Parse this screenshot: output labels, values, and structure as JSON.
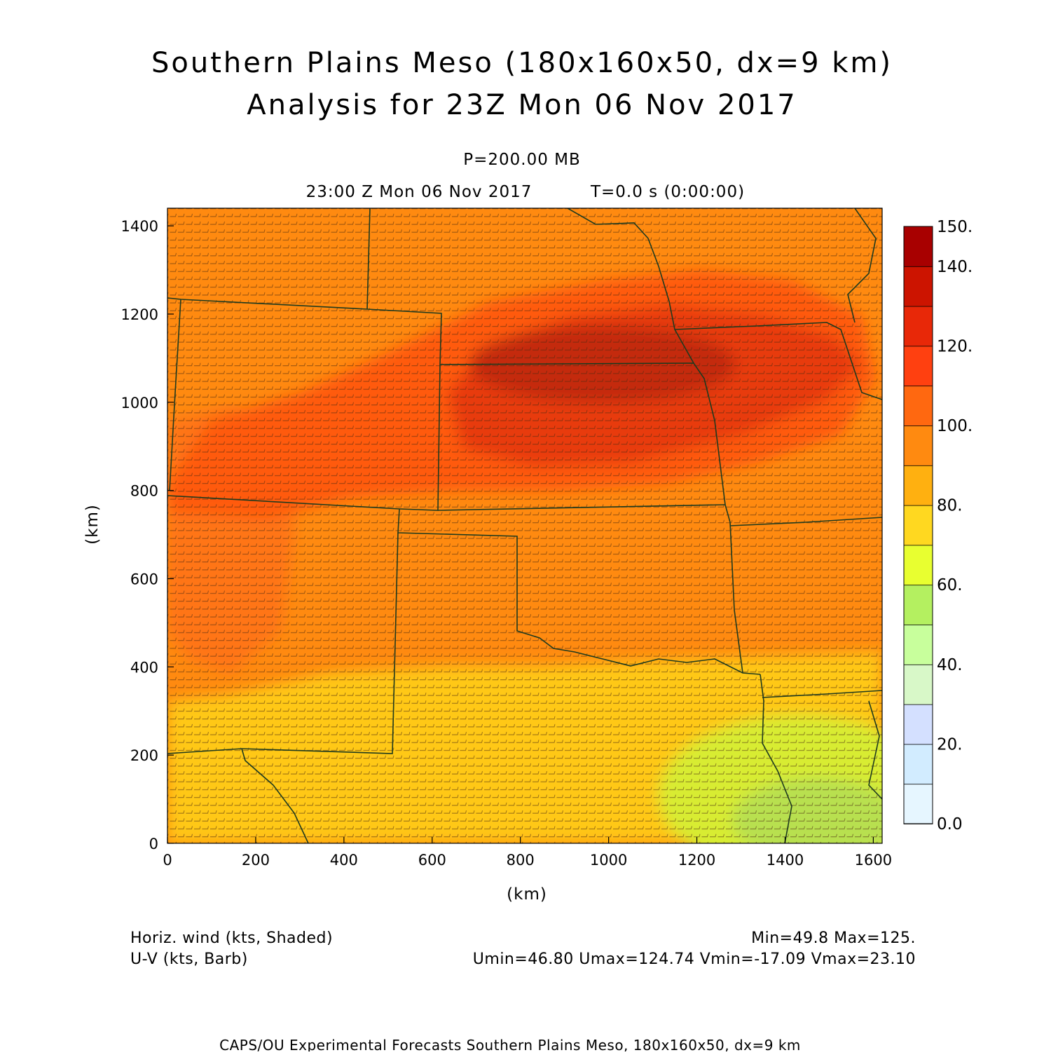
{
  "header": {
    "title_line1": "Southern Plains Meso (180x160x50, dx=9 km)",
    "title_line2": "Analysis for 23Z Mon 06 Nov 2017",
    "level": "P=200.00 MB",
    "valid_time": "23:00 Z Mon 06 Nov 2017",
    "forecast_time": "T=0.0 s (0:00:00)"
  },
  "axes": {
    "x_label": "(km)",
    "y_label": "(km)",
    "x_range_km": [
      0,
      1620
    ],
    "y_range_km": [
      0,
      1440
    ],
    "x_ticks": [
      "0",
      "200",
      "400",
      "600",
      "800",
      "1000",
      "1200",
      "1400",
      "1600"
    ],
    "y_ticks": [
      "0",
      "200",
      "400",
      "600",
      "800",
      "1000",
      "1200",
      "1400"
    ]
  },
  "colorbar": {
    "labels": [
      "0.0",
      "20.",
      "40.",
      "60.",
      "80.",
      "100.",
      "120.",
      "140.",
      "150."
    ],
    "colors": [
      "#e6f6ff",
      "#d2ecff",
      "#d4e0ff",
      "#d8f8c8",
      "#c8ff9c",
      "#b4f060",
      "#e8ff30",
      "#ffd820",
      "#ffb010",
      "#ff8a10",
      "#ff6810",
      "#ff4010",
      "#e82808",
      "#cc1400",
      "#a80000"
    ]
  },
  "footer": {
    "field1": "Horiz. wind (kts, Shaded)",
    "field2": "U-V (kts, Barb)",
    "minmax": "Min=49.8 Max=125.",
    "uv_stats": "Umin=46.80 Umax=124.74 Vmin=-17.09 Vmax=23.10",
    "credit": "CAPS/OU Experimental Forecasts  Southern Plains Meso, 180x160x50, dx=9 km"
  },
  "map": {
    "background_color": "#ff8a10",
    "boundary_color": "#1e3a1e",
    "field_regions": [
      {
        "name": "yellow-south",
        "color": "#ffc818"
      },
      {
        "name": "green-southeast",
        "color": "#d8ec30"
      },
      {
        "name": "light-green-se-core",
        "color": "#b8e050"
      },
      {
        "name": "orange-west",
        "color": "#ff7418"
      },
      {
        "name": "jet-outer",
        "color": "#ff5a10"
      },
      {
        "name": "jet-core",
        "color": "#e83a08"
      },
      {
        "name": "jet-max",
        "color": "#c42a0c"
      }
    ]
  }
}
